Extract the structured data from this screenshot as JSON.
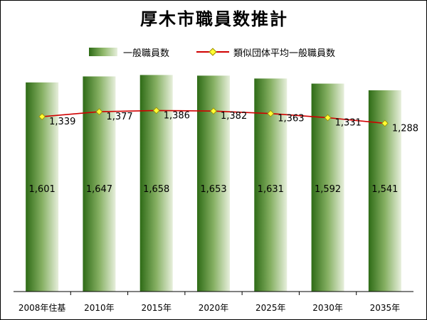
{
  "chart_data": {
    "type": "bar",
    "title": "厚木市職員数推計",
    "categories": [
      "2008年住基",
      "2010年",
      "2015年",
      "2020年",
      "2025年",
      "2030年",
      "2035年"
    ],
    "series": [
      {
        "name": "一般職員数",
        "type": "bar",
        "values": [
          1601,
          1647,
          1658,
          1653,
          1631,
          1592,
          1541
        ]
      },
      {
        "name": "類似団体平均一般職員数",
        "type": "line",
        "values": [
          1339,
          1377,
          1386,
          1382,
          1363,
          1331,
          1288
        ]
      }
    ],
    "labels": {
      "bar": [
        "1,601",
        "1,647",
        "1,658",
        "1,653",
        "1,631",
        "1,592",
        "1,541"
      ],
      "line": [
        "1,339",
        "1,377",
        "1,386",
        "1,382",
        "1,363",
        "1,331",
        "1,288"
      ]
    },
    "ylim": [
      0,
      1900
    ],
    "grid": false,
    "legend": "top",
    "colors": {
      "bar_dark": "#2e6b16",
      "bar_light": "#e7efdc",
      "line": "#d00000",
      "marker": "#ffff33"
    }
  }
}
